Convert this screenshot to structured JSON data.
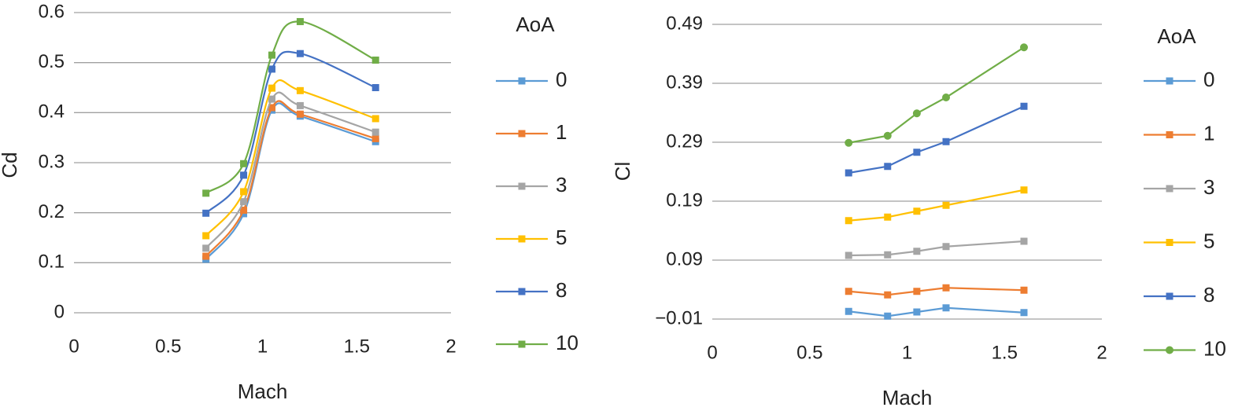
{
  "chart_data": [
    {
      "type": "line",
      "smooth": true,
      "x_label": "Mach",
      "y_label": "Cd",
      "legend_title": "AoA",
      "x": [
        0.7,
        0.9,
        1.05,
        1.2,
        1.6
      ],
      "xlim": [
        0,
        2
      ],
      "xticks": [
        0,
        0.5,
        1,
        1.5,
        2
      ],
      "ylim": [
        0,
        0.6
      ],
      "yticks": [
        0,
        0.1,
        0.2,
        0.3,
        0.4,
        0.5,
        0.6
      ],
      "grid": true,
      "series": [
        {
          "name": "0",
          "color": "#5b9bd5",
          "marker": "square",
          "values": [
            0.107,
            0.198,
            0.405,
            0.393,
            0.342
          ]
        },
        {
          "name": "1",
          "color": "#ed7d31",
          "marker": "square",
          "values": [
            0.113,
            0.205,
            0.41,
            0.397,
            0.348
          ]
        },
        {
          "name": "3",
          "color": "#a5a5a5",
          "marker": "square",
          "values": [
            0.129,
            0.222,
            0.427,
            0.414,
            0.361
          ]
        },
        {
          "name": "5",
          "color": "#ffc000",
          "marker": "square",
          "values": [
            0.154,
            0.242,
            0.449,
            0.444,
            0.388
          ]
        },
        {
          "name": "8",
          "color": "#4472c4",
          "marker": "square",
          "values": [
            0.199,
            0.275,
            0.487,
            0.518,
            0.45
          ]
        },
        {
          "name": "10",
          "color": "#70ad47",
          "marker": "square",
          "values": [
            0.239,
            0.298,
            0.515,
            0.582,
            0.505
          ]
        }
      ]
    },
    {
      "type": "line",
      "smooth": false,
      "x_label": "Mach",
      "y_label": "Cl",
      "legend_title": "AoA",
      "x": [
        0.7,
        0.9,
        1.05,
        1.2,
        1.6
      ],
      "xlim": [
        0,
        2
      ],
      "xticks": [
        0,
        0.5,
        1,
        1.5,
        2
      ],
      "ylim": [
        -0.01,
        0.49
      ],
      "yticks": [
        {
          "value": -0.01,
          "label": "−0.01"
        },
        0.09,
        0.19,
        0.29,
        0.39,
        0.49
      ],
      "grid": true,
      "series": [
        {
          "name": "0",
          "color": "#5b9bd5",
          "marker": "square",
          "values": [
            0.003,
            -0.005,
            0.002,
            0.009,
            0.001
          ]
        },
        {
          "name": "1",
          "color": "#ed7d31",
          "marker": "square",
          "values": [
            0.037,
            0.031,
            0.037,
            0.043,
            0.039
          ]
        },
        {
          "name": "3",
          "color": "#a5a5a5",
          "marker": "square",
          "values": [
            0.098,
            0.099,
            0.105,
            0.113,
            0.122
          ]
        },
        {
          "name": "5",
          "color": "#ffc000",
          "marker": "square",
          "values": [
            0.157,
            0.163,
            0.173,
            0.183,
            0.209
          ]
        },
        {
          "name": "8",
          "color": "#4472c4",
          "marker": "square",
          "values": [
            0.238,
            0.249,
            0.273,
            0.291,
            0.351
          ]
        },
        {
          "name": "10",
          "color": "#70ad47",
          "marker": "circle",
          "values": [
            0.289,
            0.301,
            0.339,
            0.366,
            0.451
          ]
        }
      ]
    }
  ]
}
